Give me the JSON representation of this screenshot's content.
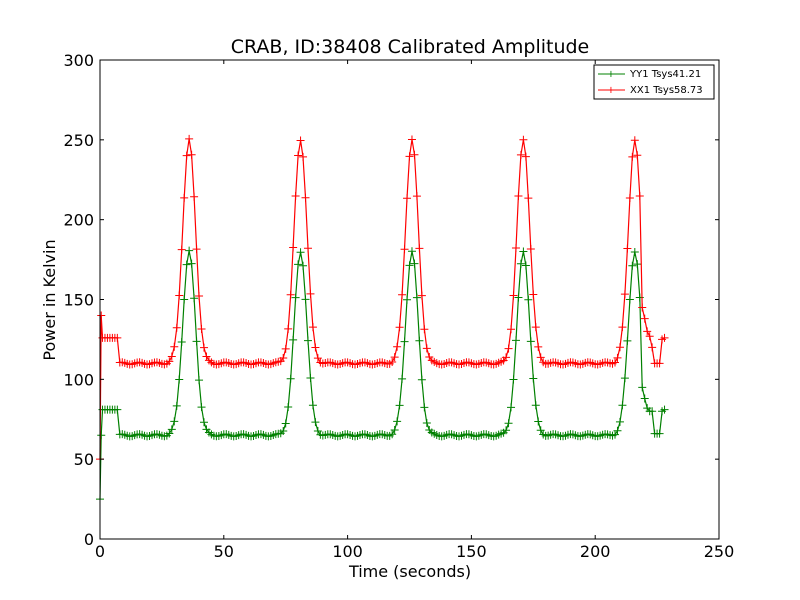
{
  "chart_data": {
    "type": "line",
    "title": "CRAB, ID:38408 Calibrated Amplitude",
    "xlabel": "Time (seconds)",
    "ylabel": "Power in Kelvin",
    "xlim": [
      0,
      250
    ],
    "ylim": [
      0,
      300
    ],
    "x_ticks": [
      "0",
      "50",
      "100",
      "150",
      "200",
      "250"
    ],
    "y_ticks": [
      "0",
      "50",
      "100",
      "150",
      "200",
      "250",
      "300"
    ],
    "grid": false,
    "legend_position": "top-right",
    "marker": "+",
    "sample_step_seconds": 1,
    "series": [
      {
        "name": "YY1 Tsys41.21",
        "color": "#008000",
        "baseline_segments": [
          {
            "x": [
              0,
              1
            ],
            "y": [
              25,
              65
            ]
          },
          {
            "x": [
              1,
              7
            ],
            "y": [
              81,
              81
            ]
          },
          {
            "x": [
              7,
              228
            ],
            "y": [
              65,
              65
            ]
          }
        ],
        "peaks": [
          {
            "x": 36,
            "y": 180
          },
          {
            "x": 81,
            "y": 180
          },
          {
            "x": 126,
            "y": 180
          },
          {
            "x": 171,
            "y": 180
          },
          {
            "x": 216,
            "y": 180
          }
        ],
        "tail": {
          "x": [
            219,
            220,
            221,
            222,
            223,
            224,
            225,
            226,
            227,
            228
          ],
          "y": [
            95,
            88,
            82,
            80,
            80,
            66,
            66,
            66,
            80,
            81
          ]
        }
      },
      {
        "name": "XX1 Tsys58.73",
        "color": "#ff0000",
        "baseline_segments": [
          {
            "x": [
              0,
              1
            ],
            "y": [
              50,
              140
            ]
          },
          {
            "x": [
              1,
              7
            ],
            "y": [
              126,
              126
            ]
          },
          {
            "x": [
              7,
              228
            ],
            "y": [
              110,
              110
            ]
          }
        ],
        "peaks": [
          {
            "x": 36,
            "y": 250
          },
          {
            "x": 81,
            "y": 250
          },
          {
            "x": 126,
            "y": 250
          },
          {
            "x": 171,
            "y": 250
          },
          {
            "x": 216,
            "y": 250
          }
        ],
        "tail": {
          "x": [
            219,
            220,
            221,
            222,
            223,
            224,
            225,
            226,
            227,
            228
          ],
          "y": [
            145,
            138,
            130,
            127,
            120,
            110,
            110,
            110,
            125,
            126
          ]
        }
      }
    ]
  }
}
